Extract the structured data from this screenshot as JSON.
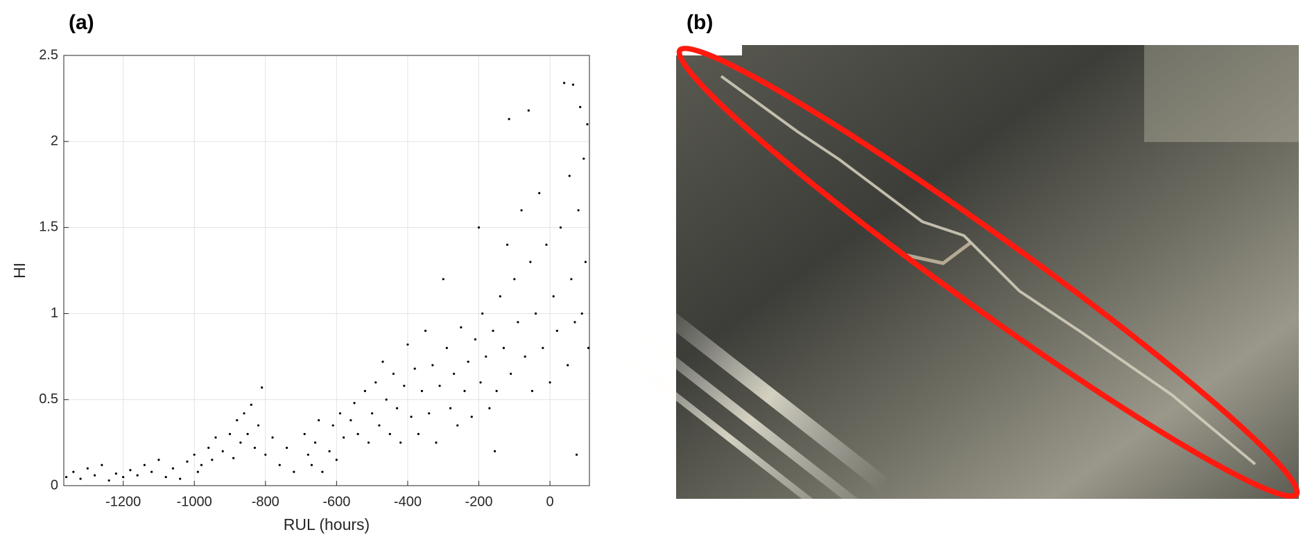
{
  "panel_a_label": "(a)",
  "panel_b_label": "(b)",
  "chart_data": {
    "type": "scatter",
    "xlabel": "RUL (hours)",
    "ylabel": "HI",
    "color": "#000000",
    "grid": true,
    "xlim": [
      -1367,
      111
    ],
    "ylim": [
      0,
      2.5
    ],
    "xticks": [
      -1200,
      -1000,
      -800,
      -600,
      -400,
      -200,
      0
    ],
    "yticks": [
      0,
      0.5,
      1,
      1.5,
      2,
      2.5
    ],
    "x": [
      -1360,
      -1340,
      -1320,
      -1300,
      -1280,
      -1260,
      -1240,
      -1220,
      -1200,
      -1180,
      -1160,
      -1140,
      -1120,
      -1100,
      -1080,
      -1060,
      -1040,
      -1020,
      -1000,
      -990,
      -980,
      -960,
      -950,
      -940,
      -920,
      -900,
      -890,
      -880,
      -870,
      -860,
      -850,
      -840,
      -830,
      -820,
      -810,
      -800,
      -780,
      -760,
      -740,
      -720,
      -690,
      -680,
      -670,
      -660,
      -650,
      -640,
      -620,
      -610,
      -600,
      -590,
      -580,
      -560,
      -550,
      -540,
      -520,
      -510,
      -500,
      -490,
      -480,
      -470,
      -460,
      -450,
      -440,
      -430,
      -420,
      -410,
      -400,
      -390,
      -380,
      -370,
      -360,
      -350,
      -340,
      -330,
      -320,
      -310,
      -300,
      -290,
      -280,
      -270,
      -260,
      -250,
      -240,
      -230,
      -220,
      -210,
      -200,
      -195,
      -190,
      -180,
      -170,
      -160,
      -155,
      -150,
      -140,
      -130,
      -120,
      -115,
      -110,
      -100,
      -90,
      -80,
      -70,
      -60,
      -55,
      -50,
      -40,
      -30,
      -20,
      -10,
      0,
      10,
      20,
      30,
      40,
      50,
      55,
      60,
      65,
      70,
      75,
      80,
      85,
      90,
      95,
      100,
      105,
      108
    ],
    "values": [
      0.05,
      0.08,
      0.04,
      0.1,
      0.06,
      0.12,
      0.03,
      0.07,
      0.05,
      0.09,
      0.06,
      0.12,
      0.08,
      0.15,
      0.05,
      0.1,
      0.04,
      0.14,
      0.18,
      0.08,
      0.12,
      0.22,
      0.15,
      0.28,
      0.2,
      0.3,
      0.16,
      0.38,
      0.25,
      0.42,
      0.3,
      0.47,
      0.22,
      0.35,
      0.57,
      0.18,
      0.28,
      0.12,
      0.22,
      0.08,
      0.3,
      0.18,
      0.12,
      0.25,
      0.38,
      0.08,
      0.2,
      0.35,
      0.15,
      0.42,
      0.28,
      0.38,
      0.48,
      0.3,
      0.55,
      0.25,
      0.42,
      0.6,
      0.35,
      0.72,
      0.5,
      0.3,
      0.65,
      0.45,
      0.25,
      0.58,
      0.82,
      0.4,
      0.68,
      0.3,
      0.55,
      0.9,
      0.42,
      0.7,
      0.25,
      0.58,
      1.2,
      0.8,
      0.45,
      0.65,
      0.35,
      0.92,
      0.55,
      0.72,
      0.4,
      0.85,
      1.5,
      0.6,
      1.0,
      0.75,
      0.45,
      0.9,
      0.2,
      0.55,
      1.1,
      0.8,
      1.4,
      2.13,
      0.65,
      1.2,
      0.95,
      1.6,
      0.75,
      2.18,
      1.3,
      0.55,
      1.0,
      1.7,
      0.8,
      1.4,
      0.6,
      1.1,
      0.9,
      1.5,
      2.34,
      0.7,
      1.8,
      1.2,
      2.33,
      0.95,
      0.18,
      1.6,
      2.2,
      1.0,
      1.9,
      1.3,
      2.1,
      0.8
    ]
  }
}
